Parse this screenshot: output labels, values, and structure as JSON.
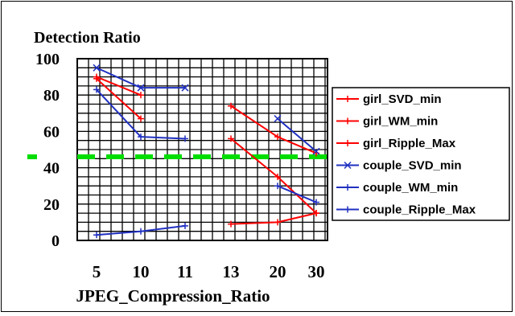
{
  "chart_data": {
    "type": "line",
    "title": "Detection Ratio",
    "xlabel": "JPEG_Compression_Ratio",
    "ylabel": "",
    "categories": [
      "5",
      "10",
      "11",
      "13",
      "20",
      "30"
    ],
    "ylim": [
      0,
      100
    ],
    "y_ticks": [
      "0",
      "20",
      "40",
      "60",
      "80",
      "100"
    ],
    "grid": true,
    "legend_position": "right",
    "threshold": {
      "value": 46,
      "color": "#00dd00"
    },
    "series": [
      {
        "name": "girl_SVD_min",
        "color": "#ff0000",
        "marker": "plus",
        "values": [
          90,
          80,
          null,
          74,
          57,
          48
        ]
      },
      {
        "name": "girl_WM_min",
        "color": "#ff0000",
        "marker": "plus",
        "values": [
          89,
          67,
          null,
          56,
          35,
          15
        ]
      },
      {
        "name": "girl_Ripple_Max",
        "color": "#ff0000",
        "marker": "plus",
        "values": [
          null,
          null,
          null,
          9,
          10,
          15
        ]
      },
      {
        "name": "couple_SVD_min",
        "color": "#2030c0",
        "marker": "x",
        "values": [
          95,
          84,
          84,
          null,
          67,
          49
        ]
      },
      {
        "name": "couple_WM_min",
        "color": "#2030c0",
        "marker": "plus",
        "values": [
          83,
          57,
          56,
          null,
          30,
          21
        ]
      },
      {
        "name": "couple_Ripple_Max",
        "color": "#2030c0",
        "marker": "plus",
        "values": [
          3,
          5,
          8,
          null,
          null,
          null
        ]
      }
    ]
  }
}
